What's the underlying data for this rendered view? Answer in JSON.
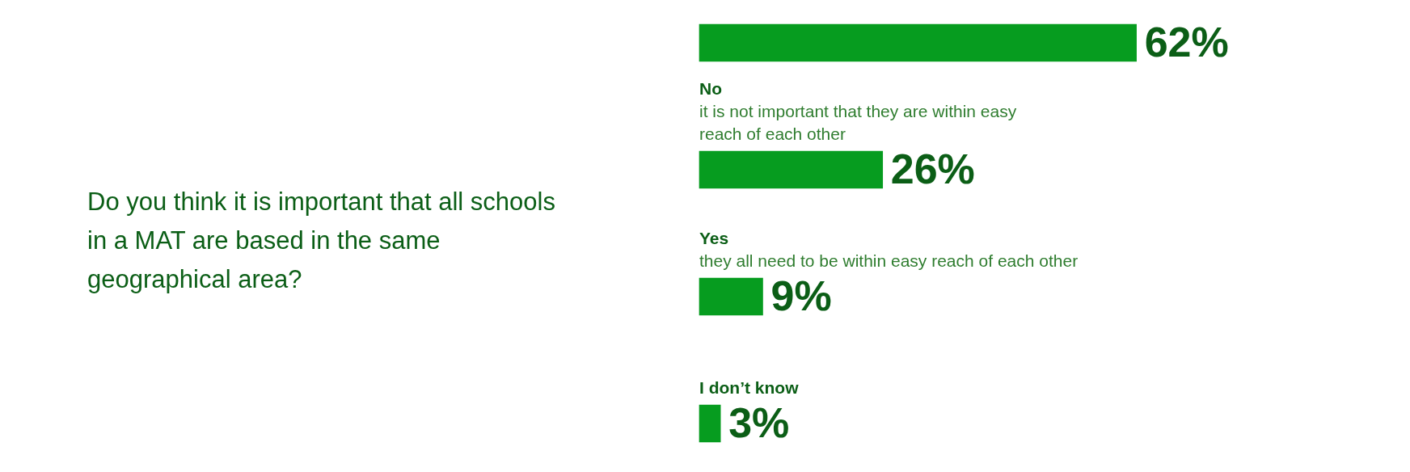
{
  "chart_data": {
    "type": "bar",
    "orientation": "horizontal",
    "title": "Do you think it is important that all schools in a MAT are based in the same geographical area?",
    "categories": [
      null,
      "No\nit is not important that they are within easy\nreach of each other",
      "Yes\nthey all need to be within easy reach of each other",
      "I don’t know"
    ],
    "values": [
      62,
      26,
      9,
      3
    ],
    "color": "#069c1f",
    "value_labels": [
      "62%",
      "26%",
      "9%",
      "3%"
    ],
    "legend": false
  }
}
